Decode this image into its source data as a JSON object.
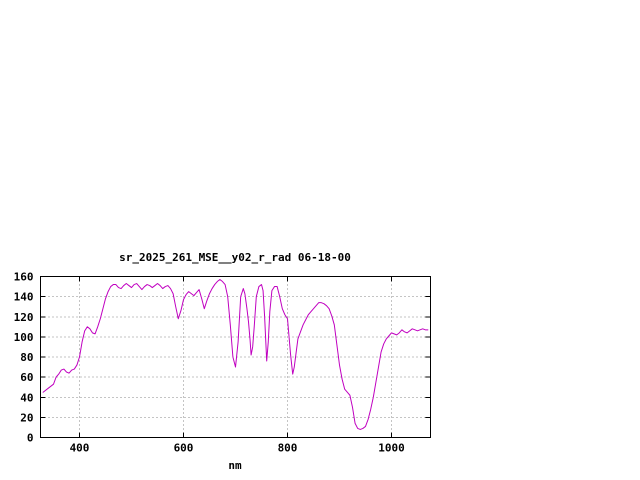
{
  "page": {
    "background": "#ffffff"
  },
  "chart_data": {
    "type": "line",
    "title": "sr_2025_261_MSE__y02_r_rad 06-18-00",
    "xlabel": "nm",
    "ylabel": "",
    "xlim": [
      325,
      1075
    ],
    "ylim": [
      0,
      160
    ],
    "xticks": [
      400,
      600,
      800,
      1000
    ],
    "yticks": [
      0,
      20,
      40,
      60,
      80,
      100,
      120,
      140,
      160
    ],
    "grid": true,
    "legend_position": "none",
    "line_color": "#c000c0",
    "axis_color": "#000000",
    "grid_color": "#888888",
    "series": [
      {
        "name": "sr_2025_261_MSE__y02_r_rad",
        "points": [
          [
            330,
            45
          ],
          [
            340,
            49
          ],
          [
            350,
            53
          ],
          [
            355,
            60
          ],
          [
            360,
            63
          ],
          [
            365,
            67
          ],
          [
            370,
            68
          ],
          [
            375,
            65
          ],
          [
            380,
            64
          ],
          [
            385,
            67
          ],
          [
            390,
            68
          ],
          [
            395,
            72
          ],
          [
            400,
            80
          ],
          [
            405,
            95
          ],
          [
            410,
            106
          ],
          [
            415,
            110
          ],
          [
            420,
            108
          ],
          [
            425,
            104
          ],
          [
            430,
            103
          ],
          [
            435,
            110
          ],
          [
            440,
            118
          ],
          [
            445,
            128
          ],
          [
            450,
            138
          ],
          [
            455,
            145
          ],
          [
            460,
            150
          ],
          [
            465,
            152
          ],
          [
            470,
            152
          ],
          [
            475,
            149
          ],
          [
            480,
            148
          ],
          [
            485,
            151
          ],
          [
            490,
            153
          ],
          [
            495,
            151
          ],
          [
            500,
            149
          ],
          [
            505,
            152
          ],
          [
            510,
            153
          ],
          [
            515,
            150
          ],
          [
            520,
            147
          ],
          [
            525,
            150
          ],
          [
            530,
            152
          ],
          [
            535,
            151
          ],
          [
            540,
            149
          ],
          [
            545,
            151
          ],
          [
            550,
            153
          ],
          [
            555,
            151
          ],
          [
            560,
            148
          ],
          [
            565,
            150
          ],
          [
            570,
            151
          ],
          [
            575,
            148
          ],
          [
            580,
            143
          ],
          [
            585,
            130
          ],
          [
            590,
            118
          ],
          [
            595,
            126
          ],
          [
            600,
            137
          ],
          [
            605,
            142
          ],
          [
            610,
            145
          ],
          [
            615,
            143
          ],
          [
            620,
            141
          ],
          [
            625,
            144
          ],
          [
            630,
            147
          ],
          [
            635,
            138
          ],
          [
            640,
            128
          ],
          [
            645,
            136
          ],
          [
            650,
            143
          ],
          [
            655,
            148
          ],
          [
            660,
            152
          ],
          [
            665,
            155
          ],
          [
            670,
            157
          ],
          [
            675,
            155
          ],
          [
            680,
            152
          ],
          [
            685,
            140
          ],
          [
            690,
            112
          ],
          [
            695,
            80
          ],
          [
            700,
            70
          ],
          [
            705,
            95
          ],
          [
            710,
            140
          ],
          [
            715,
            148
          ],
          [
            718,
            143
          ],
          [
            722,
            128
          ],
          [
            725,
            115
          ],
          [
            728,
            97
          ],
          [
            730,
            82
          ],
          [
            733,
            90
          ],
          [
            736,
            110
          ],
          [
            740,
            140
          ],
          [
            745,
            150
          ],
          [
            750,
            152
          ],
          [
            753,
            146
          ],
          [
            756,
            120
          ],
          [
            760,
            76
          ],
          [
            763,
            95
          ],
          [
            766,
            125
          ],
          [
            770,
            146
          ],
          [
            775,
            150
          ],
          [
            780,
            150
          ],
          [
            785,
            140
          ],
          [
            790,
            128
          ],
          [
            795,
            122
          ],
          [
            800,
            118
          ],
          [
            803,
            100
          ],
          [
            806,
            82
          ],
          [
            810,
            63
          ],
          [
            813,
            70
          ],
          [
            816,
            82
          ],
          [
            820,
            98
          ],
          [
            825,
            105
          ],
          [
            830,
            112
          ],
          [
            835,
            117
          ],
          [
            840,
            122
          ],
          [
            845,
            125
          ],
          [
            850,
            128
          ],
          [
            855,
            131
          ],
          [
            860,
            134
          ],
          [
            865,
            134
          ],
          [
            870,
            133
          ],
          [
            875,
            131
          ],
          [
            880,
            128
          ],
          [
            885,
            121
          ],
          [
            890,
            112
          ],
          [
            895,
            92
          ],
          [
            900,
            72
          ],
          [
            905,
            58
          ],
          [
            910,
            48
          ],
          [
            915,
            45
          ],
          [
            920,
            42
          ],
          [
            925,
            30
          ],
          [
            930,
            14
          ],
          [
            935,
            9
          ],
          [
            940,
            8
          ],
          [
            945,
            9
          ],
          [
            950,
            11
          ],
          [
            955,
            18
          ],
          [
            960,
            28
          ],
          [
            965,
            40
          ],
          [
            970,
            55
          ],
          [
            975,
            70
          ],
          [
            980,
            85
          ],
          [
            985,
            93
          ],
          [
            990,
            98
          ],
          [
            995,
            101
          ],
          [
            1000,
            104
          ],
          [
            1005,
            103
          ],
          [
            1010,
            102
          ],
          [
            1015,
            104
          ],
          [
            1020,
            107
          ],
          [
            1025,
            105
          ],
          [
            1030,
            104
          ],
          [
            1035,
            106
          ],
          [
            1040,
            108
          ],
          [
            1045,
            107
          ],
          [
            1050,
            106
          ],
          [
            1055,
            107
          ],
          [
            1060,
            108
          ],
          [
            1065,
            107
          ],
          [
            1070,
            107
          ]
        ]
      }
    ]
  }
}
